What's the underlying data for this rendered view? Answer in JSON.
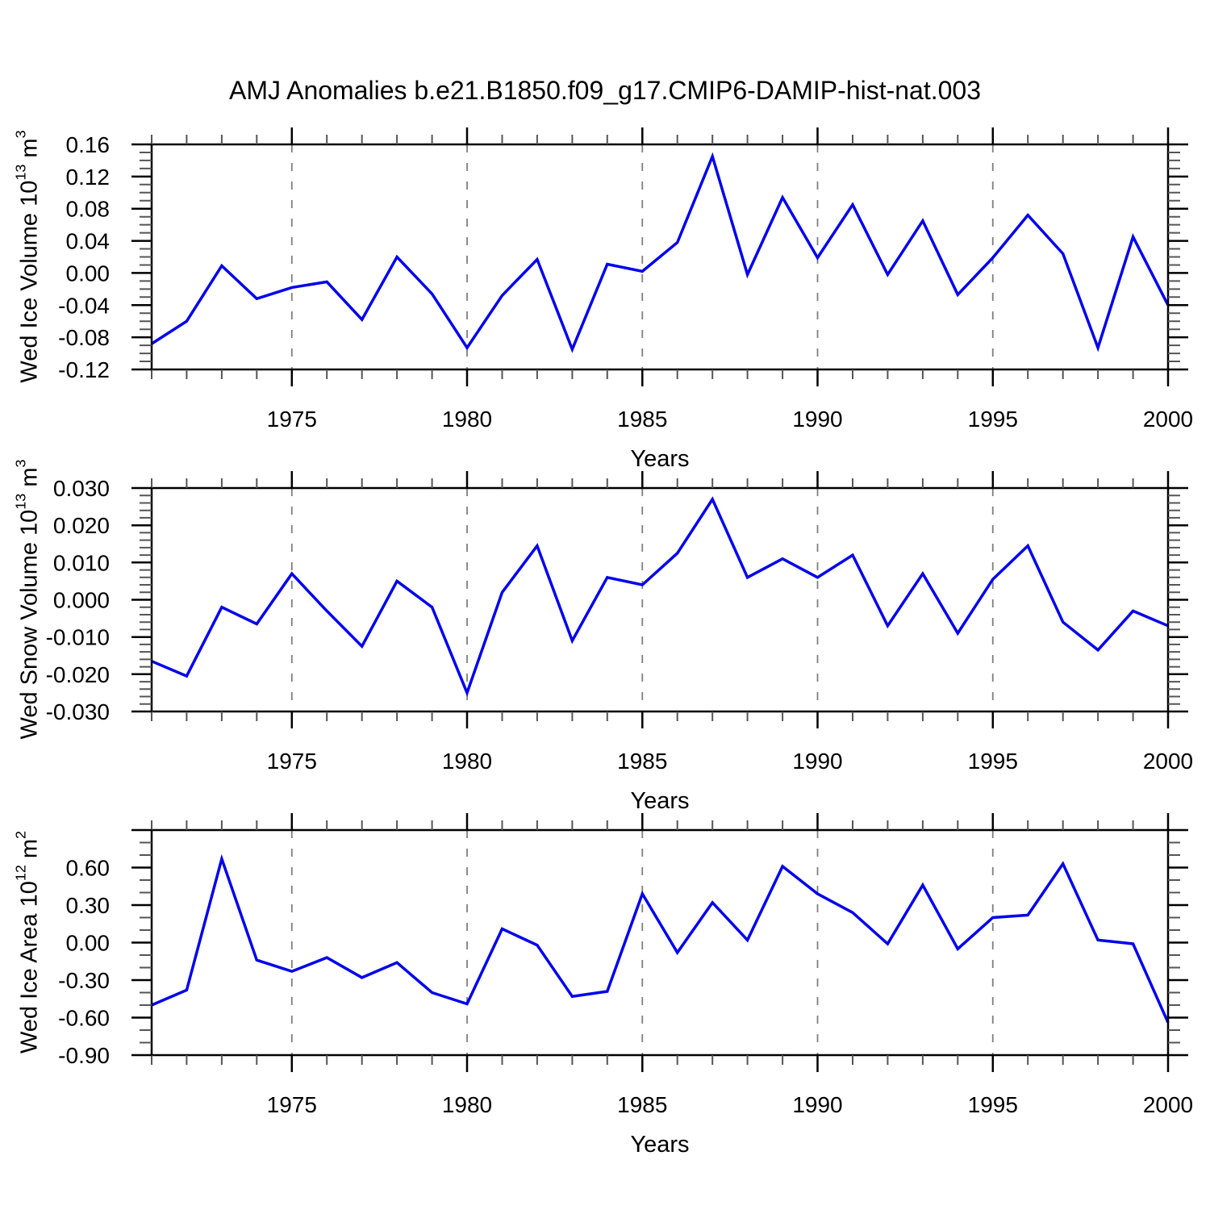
{
  "title": "AMJ Anomalies b.e21.B1850.f09_g17.CMIP6-DAMIP-hist-nat.003",
  "colors": {
    "line": "#0000EE",
    "grid": "#7F7F7F",
    "axis": "#000000",
    "minor_tick": "#555555"
  },
  "chart_data": [
    {
      "type": "line",
      "id": "wed-ice-volume",
      "ylabel_text": "Wed Ice Volume 10^13 m^3",
      "ylabel_parts": [
        {
          "text": "Wed Ice Volume 10"
        },
        {
          "sup": "13"
        },
        {
          "text": " m"
        },
        {
          "sup": "3"
        }
      ],
      "xlabel": "Years",
      "ylim": [
        -0.12,
        0.16
      ],
      "y_major_step": 0.04,
      "y_minor_step": 0.01,
      "y_tick_labels": [
        {
          "v": 0.16,
          "label": "0.16"
        },
        {
          "v": 0.12,
          "label": "0.12"
        },
        {
          "v": 0.08,
          "label": "0.08"
        },
        {
          "v": 0.04,
          "label": "0.04"
        },
        {
          "v": 0.0,
          "label": "0.00"
        },
        {
          "v": -0.04,
          "label": "-0.04"
        },
        {
          "v": -0.08,
          "label": "-0.08"
        },
        {
          "v": -0.12,
          "label": "-0.12"
        }
      ],
      "xlim": [
        1971,
        2000
      ],
      "x_minor_step": 1,
      "x_tick_labels": [
        {
          "v": 1975,
          "label": "1975"
        },
        {
          "v": 1980,
          "label": "1980"
        },
        {
          "v": 1985,
          "label": "1985"
        },
        {
          "v": 1990,
          "label": "1990"
        },
        {
          "v": 1995,
          "label": "1995"
        },
        {
          "v": 2000,
          "label": "2000"
        }
      ],
      "grid_x": [
        1975,
        1980,
        1985,
        1990,
        1995
      ],
      "x": [
        1971,
        1972,
        1973,
        1974,
        1975,
        1976,
        1977,
        1978,
        1979,
        1980,
        1981,
        1982,
        1983,
        1984,
        1985,
        1986,
        1987,
        1988,
        1989,
        1990,
        1991,
        1992,
        1993,
        1994,
        1995,
        1996,
        1997,
        1998,
        1999,
        2000
      ],
      "values": [
        -0.088,
        -0.06,
        0.009,
        -0.032,
        -0.018,
        -0.011,
        -0.058,
        0.02,
        -0.026,
        -0.093,
        -0.028,
        0.017,
        -0.095,
        0.011,
        0.002,
        0.038,
        0.145,
        -0.002,
        0.094,
        0.019,
        0.085,
        -0.002,
        0.065,
        -0.027,
        0.019,
        0.072,
        0.024,
        -0.093,
        0.045,
        -0.04
      ]
    },
    {
      "type": "line",
      "id": "wed-snow-volume",
      "ylabel_text": "Wed Snow Volume 10^13 m^3",
      "ylabel_parts": [
        {
          "text": "Wed Snow Volume 10"
        },
        {
          "sup": "13"
        },
        {
          "text": " m"
        },
        {
          "sup": "3"
        }
      ],
      "xlabel": "Years",
      "ylim": [
        -0.03,
        0.03
      ],
      "y_major_step": 0.01,
      "y_minor_step": 0.002,
      "y_tick_labels": [
        {
          "v": 0.03,
          "label": "0.030"
        },
        {
          "v": 0.02,
          "label": "0.020"
        },
        {
          "v": 0.01,
          "label": "0.010"
        },
        {
          "v": 0.0,
          "label": "0.000"
        },
        {
          "v": -0.01,
          "label": "-0.010"
        },
        {
          "v": -0.02,
          "label": "-0.020"
        },
        {
          "v": -0.03,
          "label": "-0.030"
        }
      ],
      "xlim": [
        1971,
        2000
      ],
      "x_minor_step": 1,
      "x_tick_labels": [
        {
          "v": 1975,
          "label": "1975"
        },
        {
          "v": 1980,
          "label": "1980"
        },
        {
          "v": 1985,
          "label": "1985"
        },
        {
          "v": 1990,
          "label": "1990"
        },
        {
          "v": 1995,
          "label": "1995"
        },
        {
          "v": 2000,
          "label": "2000"
        }
      ],
      "grid_x": [
        1975,
        1980,
        1985,
        1990,
        1995
      ],
      "x": [
        1971,
        1972,
        1973,
        1974,
        1975,
        1976,
        1977,
        1978,
        1979,
        1980,
        1981,
        1982,
        1983,
        1984,
        1985,
        1986,
        1987,
        1988,
        1989,
        1990,
        1991,
        1992,
        1993,
        1994,
        1995,
        1996,
        1997,
        1998,
        1999,
        2000
      ],
      "values": [
        -0.0165,
        -0.0205,
        -0.002,
        -0.0065,
        0.007,
        -0.003,
        -0.0125,
        0.005,
        -0.002,
        -0.025,
        0.002,
        0.0145,
        -0.011,
        0.006,
        0.004,
        0.0125,
        0.027,
        0.006,
        0.011,
        0.006,
        0.012,
        -0.007,
        0.007,
        -0.009,
        0.0055,
        0.0145,
        -0.006,
        -0.0135,
        -0.003,
        -0.007
      ]
    },
    {
      "type": "line",
      "id": "wed-ice-area",
      "ylabel_text": "Wed Ice Area 10^12 m^2",
      "ylabel_parts": [
        {
          "text": "Wed Ice Area 10"
        },
        {
          "sup": "12"
        },
        {
          "text": " m"
        },
        {
          "sup": "2"
        }
      ],
      "xlabel": "Years",
      "ylim": [
        -0.9,
        0.9
      ],
      "y_major_step": 0.3,
      "y_minor_step": 0.1,
      "y_tick_labels": [
        {
          "v": 0.6,
          "label": "0.60"
        },
        {
          "v": 0.3,
          "label": "0.30"
        },
        {
          "v": 0.0,
          "label": "0.00"
        },
        {
          "v": -0.3,
          "label": "-0.30"
        },
        {
          "v": -0.6,
          "label": "-0.60"
        },
        {
          "v": -0.9,
          "label": "-0.90"
        }
      ],
      "xlim": [
        1971,
        2000
      ],
      "x_minor_step": 1,
      "x_tick_labels": [
        {
          "v": 1975,
          "label": "1975"
        },
        {
          "v": 1980,
          "label": "1980"
        },
        {
          "v": 1985,
          "label": "1985"
        },
        {
          "v": 1990,
          "label": "1990"
        },
        {
          "v": 1995,
          "label": "1995"
        },
        {
          "v": 2000,
          "label": "2000"
        }
      ],
      "grid_x": [
        1975,
        1980,
        1985,
        1990,
        1995
      ],
      "x": [
        1971,
        1972,
        1973,
        1974,
        1975,
        1976,
        1977,
        1978,
        1979,
        1980,
        1981,
        1982,
        1983,
        1984,
        1985,
        1986,
        1987,
        1988,
        1989,
        1990,
        1991,
        1992,
        1993,
        1994,
        1995,
        1996,
        1997,
        1998,
        1999,
        2000
      ],
      "values": [
        -0.5,
        -0.38,
        0.67,
        -0.14,
        -0.23,
        -0.12,
        -0.28,
        -0.16,
        -0.4,
        -0.49,
        0.11,
        -0.02,
        -0.43,
        -0.39,
        0.39,
        -0.08,
        0.32,
        0.02,
        0.61,
        0.39,
        0.24,
        -0.01,
        0.46,
        -0.05,
        0.2,
        0.22,
        0.63,
        0.02,
        -0.01,
        -0.64
      ]
    }
  ]
}
